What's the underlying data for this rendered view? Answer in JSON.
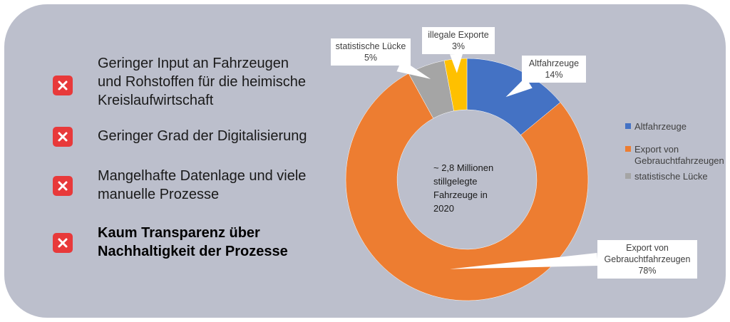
{
  "issues": [
    {
      "lines": [
        "Geringer Input an Fahrzeugen",
        "und Rohstoffen für die heimische",
        "Kreislaufwirtschaft"
      ],
      "bold": false,
      "icon": "close-icon"
    },
    {
      "lines": [
        "Geringer Grad der Digitalisierung"
      ],
      "bold": false,
      "icon": "close-icon"
    },
    {
      "lines": [
        "Mangelhafte Datenlage und viele",
        "manuelle Prozesse"
      ],
      "bold": false,
      "icon": "close-icon"
    },
    {
      "lines": [
        "Kaum Transparenz über",
        "Nachhaltigkeit der Prozesse"
      ],
      "bold": true,
      "icon": "close-icon"
    }
  ],
  "colors": {
    "panel": "#bcbfcc",
    "icon_bg": "#e8393a",
    "altfahrzeuge": "#4472c4",
    "export": "#ed7d31",
    "luecke": "#a5a5a5",
    "illegal": "#ffc000"
  },
  "chart_data": {
    "type": "pie",
    "variant": "donut",
    "center_label": [
      "~ 2,8 Millionen",
      "stillgelegte",
      "Fahrzeuge in",
      "2020"
    ],
    "slices": [
      {
        "name": "Altfahrzeuge",
        "label_lines": [
          "Altfahrzeuge"
        ],
        "value": 14,
        "value_label": "14%",
        "color": "#4472c4"
      },
      {
        "name": "Export von Gebrauchtfahrzeugen",
        "label_lines": [
          "Export von",
          "Gebrauchtfahrzeugen"
        ],
        "value": 78,
        "value_label": "78%",
        "color": "#ed7d31"
      },
      {
        "name": "statistische Lücke",
        "label_lines": [
          "statistische Lücke"
        ],
        "value": 5,
        "value_label": "5%",
        "color": "#a5a5a5"
      },
      {
        "name": "illegale Exporte",
        "label_lines": [
          "illegale Exporte"
        ],
        "value": 3,
        "value_label": "3%",
        "color": "#ffc000"
      }
    ],
    "legend": {
      "placement": "right",
      "entries": [
        {
          "label_lines": [
            "Altfahrzeuge"
          ],
          "color": "#4472c4"
        },
        {
          "label_lines": [
            "Export von",
            "Gebrauchtfahrzeugen"
          ],
          "color": "#ed7d31"
        },
        {
          "label_lines": [
            "statistische Lücke"
          ],
          "color": "#a5a5a5"
        }
      ]
    }
  }
}
